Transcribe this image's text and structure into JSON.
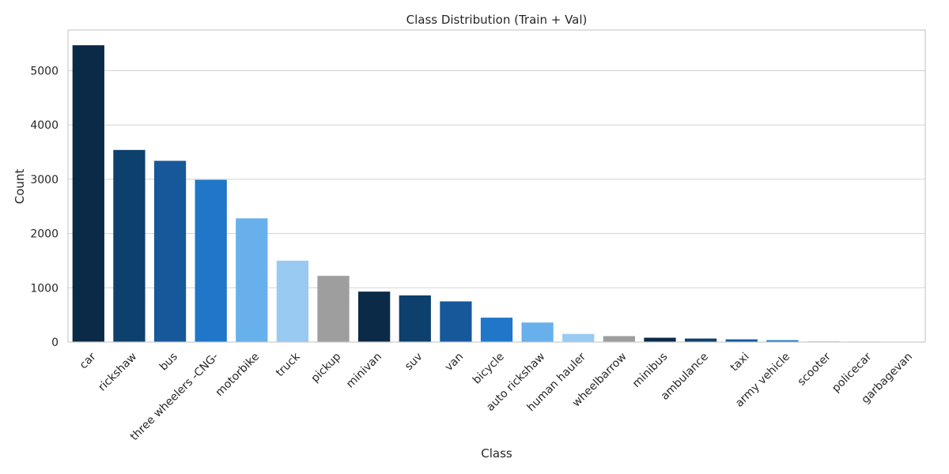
{
  "chart_data": {
    "type": "bar",
    "title": "Class Distribution (Train + Val)",
    "xlabel": "Class",
    "ylabel": "Count",
    "ylim": [
      0,
      5750
    ],
    "yticks": [
      0,
      1000,
      2000,
      3000,
      4000,
      5000
    ],
    "grid": "horizontal",
    "categories": [
      "car",
      "rickshaw",
      "bus",
      "three wheelers -CNG-",
      "motorbike",
      "truck",
      "pickup",
      "minivan",
      "suv",
      "van",
      "bicycle",
      "auto rickshaw",
      "human hauler",
      "wheelbarrow",
      "minibus",
      "ambulance",
      "taxi",
      "army vehicle",
      "scooter",
      "policecar",
      "garbagevan"
    ],
    "values": [
      5470,
      3540,
      3340,
      2990,
      2280,
      1500,
      1220,
      930,
      860,
      750,
      450,
      360,
      150,
      110,
      80,
      65,
      50,
      35,
      12,
      10,
      5
    ],
    "colors": [
      "#0a2a47",
      "#0d406c",
      "#17589b",
      "#2076c8",
      "#68b0ec",
      "#99caf2",
      "#9e9e9e",
      "#0a2a47",
      "#0d406c",
      "#17589b",
      "#2076c8",
      "#68b0ec",
      "#99caf2",
      "#9e9e9e",
      "#0a2a47",
      "#0d406c",
      "#17589b",
      "#2076c8",
      "#68b0ec",
      "#99caf2",
      "#9e9e9e"
    ]
  }
}
